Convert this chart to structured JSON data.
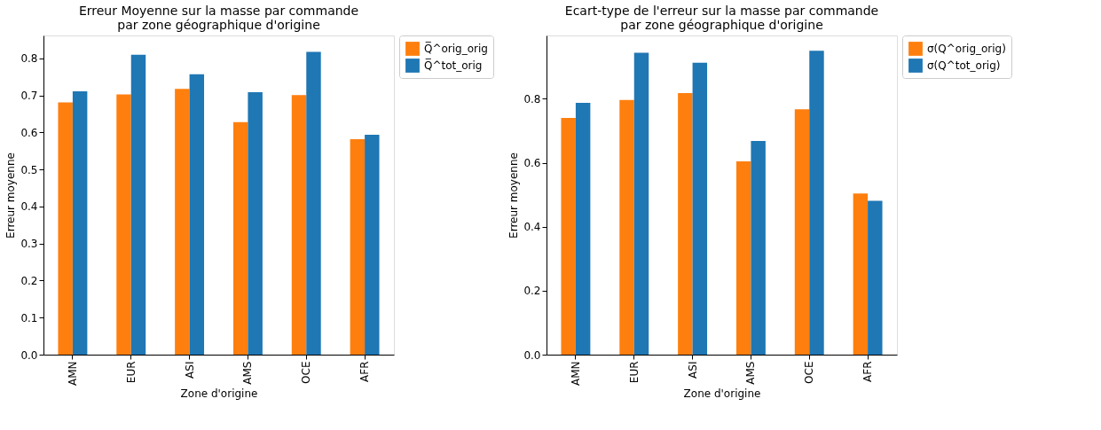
{
  "chart_data": [
    {
      "type": "bar",
      "title": "Erreur Moyenne sur la masse par commande\npar zone géographique d'origine",
      "xlabel": "Zone d'origine",
      "ylabel": "Erreur moyenne",
      "categories": [
        "AMN",
        "EUR",
        "ASI",
        "AMS",
        "OCE",
        "AFR"
      ],
      "series": [
        {
          "name": "Q̅^orig_orig",
          "color": "#ff7f0e",
          "values": [
            0.681,
            0.703,
            0.718,
            0.628,
            0.701,
            0.582
          ]
        },
        {
          "name": "Q̅^tot_orig",
          "color": "#1f77b4",
          "values": [
            0.711,
            0.81,
            0.757,
            0.709,
            0.818,
            0.594
          ]
        }
      ],
      "ylim": [
        0,
        0.862
      ],
      "yticks": [
        {
          "value": 0,
          "label": "0.0"
        },
        0.1,
        0.2,
        0.3,
        0.4,
        0.5,
        0.6,
        0.7,
        0.8
      ],
      "grid": false,
      "legend": "right"
    },
    {
      "type": "bar",
      "title": "Ecart-type de l'erreur sur la masse par commande\npar zone géographique d'origine",
      "xlabel": "Zone d'origine",
      "ylabel": "Erreur moyenne",
      "categories": [
        "AMN",
        "EUR",
        "ASI",
        "AMS",
        "OCE",
        "AFR"
      ],
      "series": [
        {
          "name": "σ(Q^orig_orig)",
          "color": "#ff7f0e",
          "values": [
            0.74,
            0.796,
            0.818,
            0.604,
            0.767,
            0.504
          ]
        },
        {
          "name": "σ(Q^tot_orig)",
          "color": "#1f77b4",
          "values": [
            0.787,
            0.944,
            0.913,
            0.668,
            0.95,
            0.481
          ]
        }
      ],
      "ylim": [
        0,
        0.998
      ],
      "yticks": [
        {
          "value": 0,
          "label": "0.0"
        },
        0.2,
        0.4,
        0.6,
        0.8
      ],
      "grid": false,
      "legend": "right"
    }
  ]
}
